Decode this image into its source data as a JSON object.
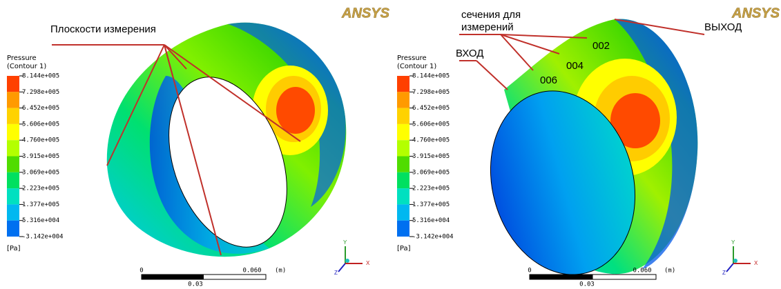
{
  "left": {
    "legend": {
      "title": "Pressure",
      "subtitle": "(Contour 1)",
      "labels": [
        "8.144e+005",
        "7.298e+005",
        "6.452e+005",
        "5.606e+005",
        "4.760e+005",
        "3.915e+005",
        "3.069e+005",
        "2.223e+005",
        "1.377e+005",
        "5.316e+004",
        "-3.142e+004"
      ],
      "unit": "[Pa]"
    },
    "scale": {
      "start": "0",
      "end": "0.060",
      "unit": "(m)",
      "mid": "0.03"
    },
    "logo": "ANSYS",
    "axes": [
      "Y",
      "X",
      "Z"
    ],
    "annotations": [
      "Плоскости измерения"
    ]
  },
  "right": {
    "legend": {
      "title": "Pressure",
      "subtitle": "(Contour 1)",
      "labels": [
        "8.144e+005",
        "7.298e+005",
        "6.452e+005",
        "5.606e+005",
        "4.760e+005",
        "3.915e+005",
        "3.069e+005",
        "2.223e+005",
        "1.377e+005",
        "5.316e+004",
        "-3.142e+004"
      ],
      "unit": "[Pa]"
    },
    "scale": {
      "start": "0",
      "end": "0.060",
      "unit": "(m)",
      "mid": "0.03"
    },
    "logo": "ANSYS",
    "axes": [
      "Y",
      "X",
      "Z"
    ],
    "annotations": [
      "сечения для",
      "измерений",
      "ВХОД",
      "ВЫХОД",
      "002",
      "004",
      "006"
    ]
  }
}
